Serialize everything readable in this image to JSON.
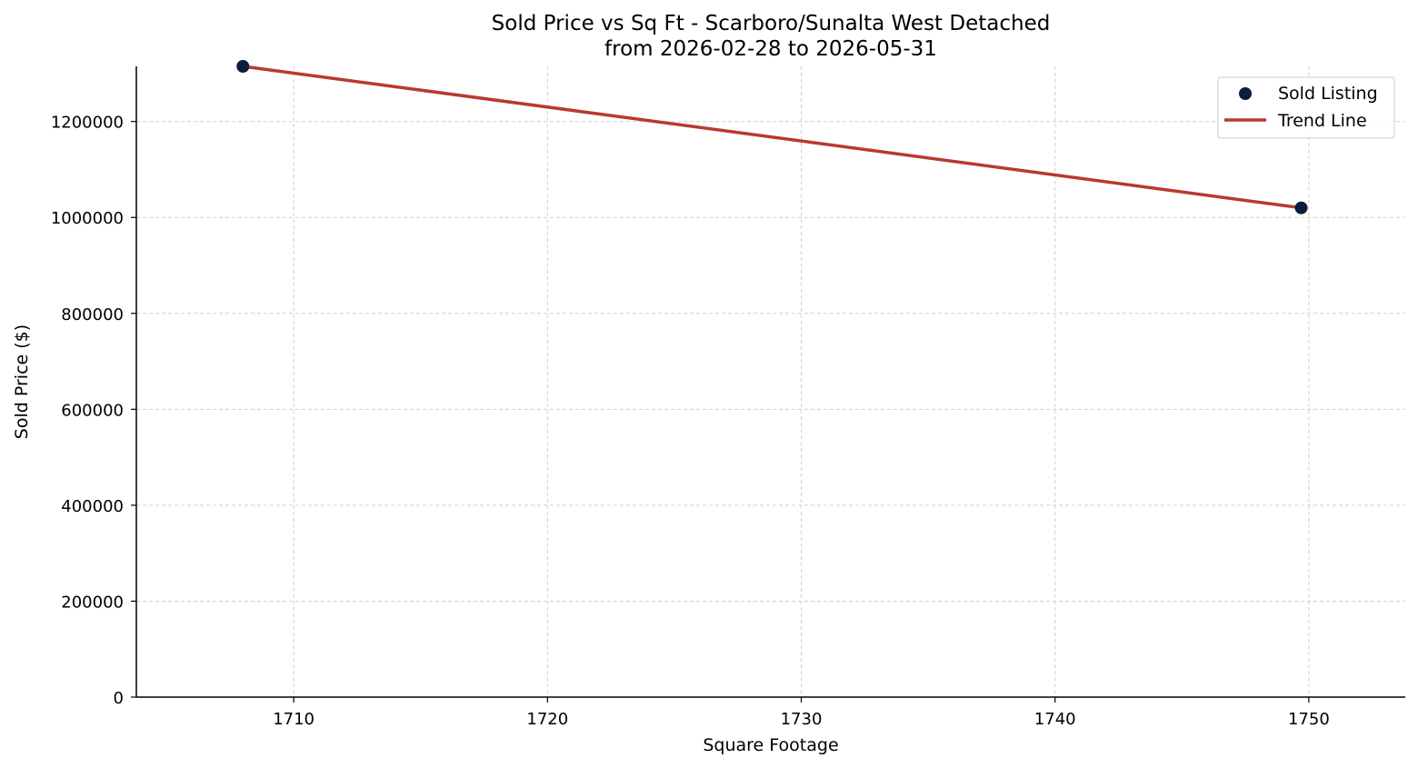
{
  "chart_data": {
    "type": "scatter",
    "title": "Sold Price vs Sq Ft - Scarboro/Sunalta West Detached",
    "subtitle": "from 2026-02-28 to 2026-05-31",
    "xlabel": "Square Footage",
    "ylabel": "Sold Price ($)",
    "xlim": [
      1703.8,
      1753.8
    ],
    "ylim": [
      0,
      1315000
    ],
    "x_ticks": [
      1710,
      1720,
      1730,
      1740,
      1750
    ],
    "x_tick_labels": [
      "1710",
      "1720",
      "1730",
      "1740",
      "1750"
    ],
    "y_ticks": [
      0,
      200000,
      400000,
      600000,
      800000,
      1000000,
      1200000
    ],
    "y_tick_labels": [
      "0",
      "200000",
      "400000",
      "600000",
      "800000",
      "1000000",
      "1200000"
    ],
    "grid": true,
    "legend_position": "top-right",
    "series": [
      {
        "name": "Sold Listing",
        "kind": "scatter",
        "color": "#0b1f3a",
        "points": [
          {
            "x": 1708,
            "y": 1315000
          },
          {
            "x": 1749.7,
            "y": 1020000
          }
        ]
      },
      {
        "name": "Trend Line",
        "kind": "line",
        "color": "#b83a2b",
        "points": [
          {
            "x": 1708,
            "y": 1315000
          },
          {
            "x": 1749.7,
            "y": 1020000
          }
        ]
      }
    ]
  }
}
